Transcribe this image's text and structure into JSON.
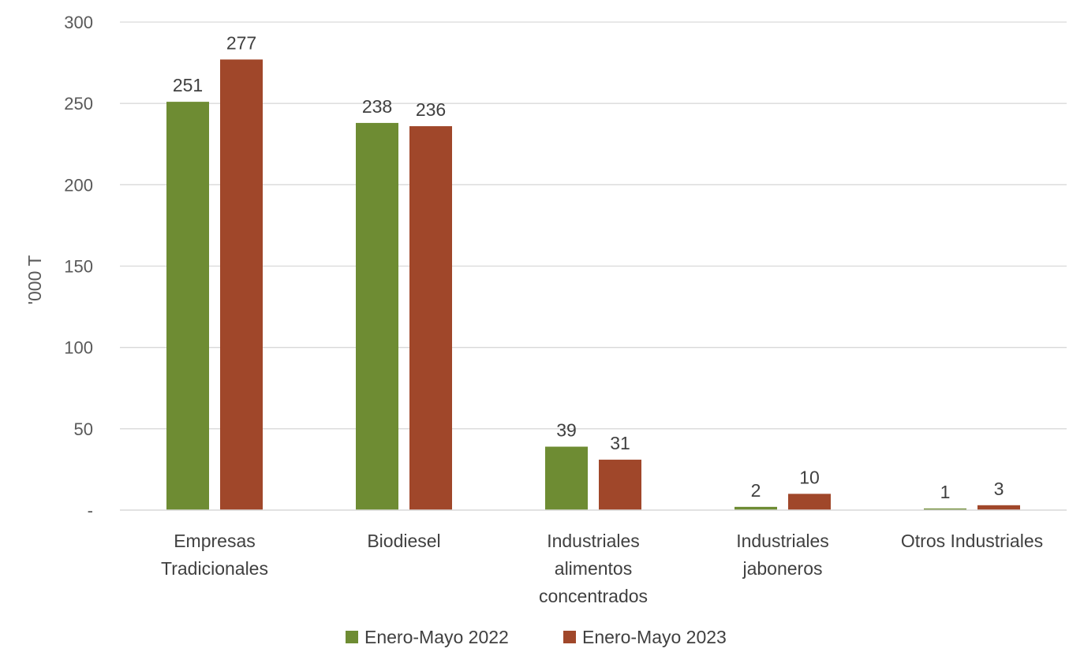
{
  "chart_data": {
    "type": "bar",
    "title": "",
    "xlabel": "",
    "ylabel": "'000 T",
    "ylim": [
      0,
      300
    ],
    "yticks": [
      0,
      50,
      100,
      150,
      200,
      250,
      300
    ],
    "ytick_labels": [
      "-",
      "50",
      "100",
      "150",
      "200",
      "250",
      "300"
    ],
    "grid": true,
    "legend_position": "bottom",
    "categories": [
      [
        "Empresas",
        "Tradicionales"
      ],
      [
        "Biodiesel"
      ],
      [
        "Industriales",
        "alimentos",
        "concentrados"
      ],
      [
        "Industriales",
        "jaboneros"
      ],
      [
        "Otros Industriales"
      ]
    ],
    "series": [
      {
        "name": "Enero-Mayo 2022",
        "color": "#6e8c33",
        "values": [
          251,
          238,
          39,
          2,
          1
        ]
      },
      {
        "name": "Enero-Mayo 2023",
        "color": "#a0472a",
        "values": [
          277,
          236,
          31,
          10,
          3
        ]
      }
    ]
  }
}
